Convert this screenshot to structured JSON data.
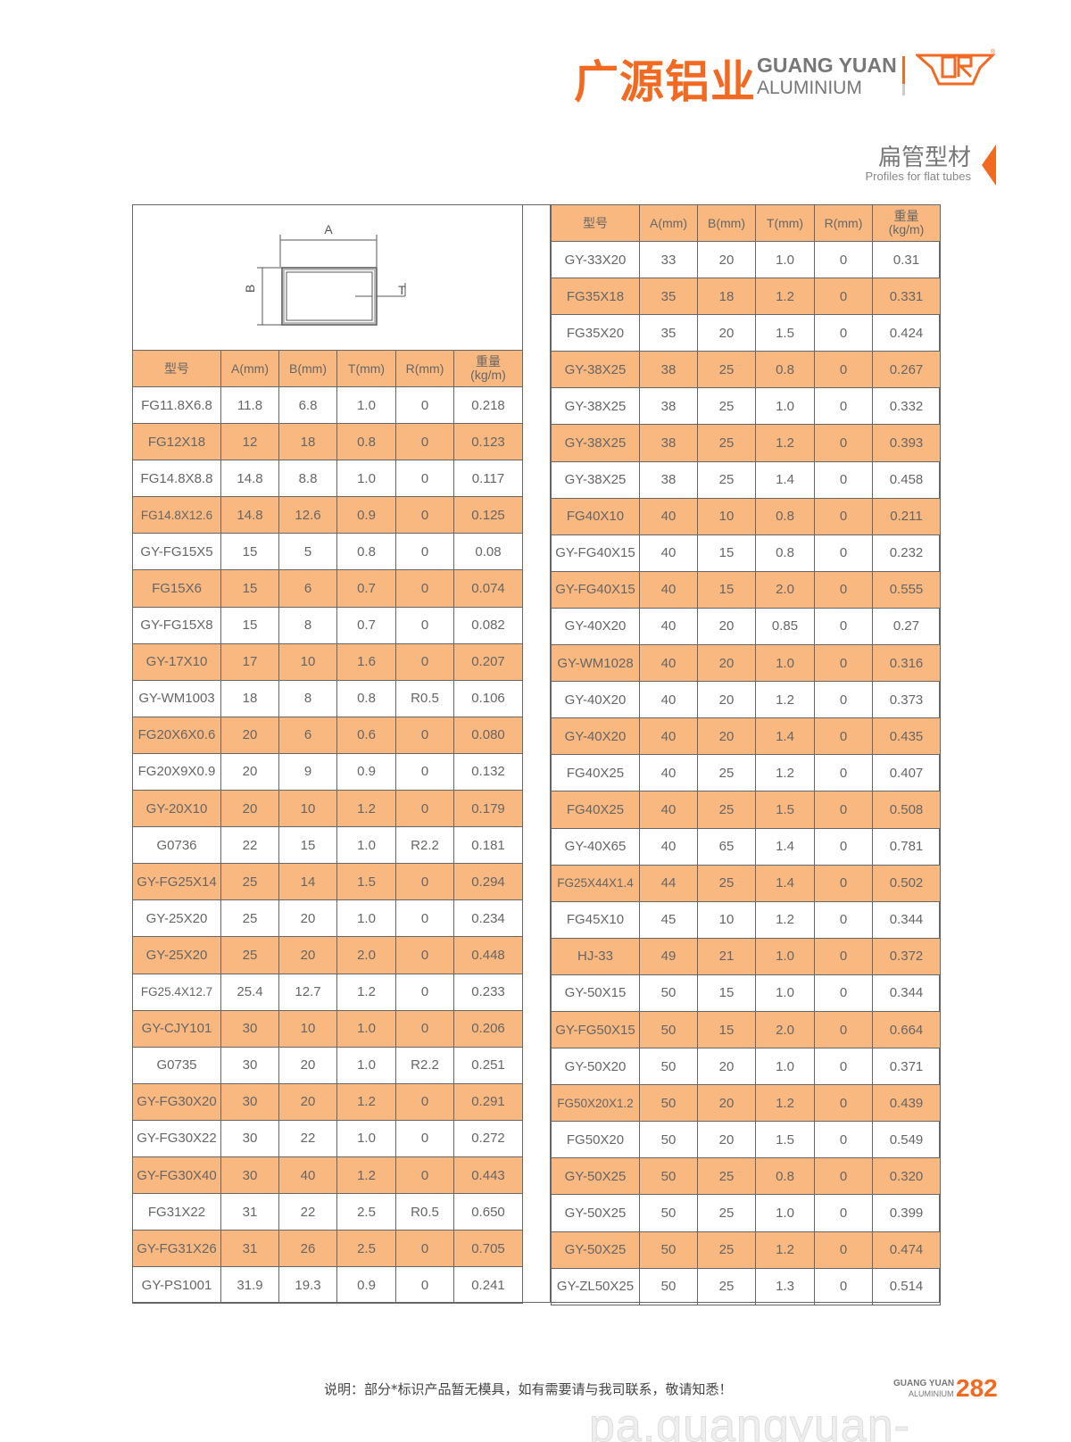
{
  "brand": {
    "name_cn": "广源铝业",
    "name_en_1": "GUANG YUAN",
    "name_en_2": "ALUMINIUM",
    "logo_text": "GYR",
    "accent": "#F26A21",
    "row_highlight": "#F9B880"
  },
  "section": {
    "title_cn": "扁管型材",
    "title_en": "Profiles for flat tubes"
  },
  "diagram": {
    "label_a": "A",
    "label_b": "B",
    "label_t": "T"
  },
  "columns": [
    "型号",
    "A(mm)",
    "B(mm)",
    "T(mm)",
    "R(mm)",
    "重量\n(kg/m)"
  ],
  "left_table": [
    [
      "FG11.8X6.8",
      "11.8",
      "6.8",
      "1.0",
      "0",
      "0.218"
    ],
    [
      "FG12X18",
      "12",
      "18",
      "0.8",
      "0",
      "0.123"
    ],
    [
      "FG14.8X8.8",
      "14.8",
      "8.8",
      "1.0",
      "0",
      "0.117"
    ],
    [
      "FG14.8X12.6",
      "14.8",
      "12.6",
      "0.9",
      "0",
      "0.125"
    ],
    [
      "GY-FG15X5",
      "15",
      "5",
      "0.8",
      "0",
      "0.08"
    ],
    [
      "FG15X6",
      "15",
      "6",
      "0.7",
      "0",
      "0.074"
    ],
    [
      "GY-FG15X8",
      "15",
      "8",
      "0.7",
      "0",
      "0.082"
    ],
    [
      "GY-17X10",
      "17",
      "10",
      "1.6",
      "0",
      "0.207"
    ],
    [
      "GY-WM1003",
      "18",
      "8",
      "0.8",
      "R0.5",
      "0.106"
    ],
    [
      "FG20X6X0.6",
      "20",
      "6",
      "0.6",
      "0",
      "0.080"
    ],
    [
      "FG20X9X0.9",
      "20",
      "9",
      "0.9",
      "0",
      "0.132"
    ],
    [
      "GY-20X10",
      "20",
      "10",
      "1.2",
      "0",
      "0.179"
    ],
    [
      "G0736",
      "22",
      "15",
      "1.0",
      "R2.2",
      "0.181"
    ],
    [
      "GY-FG25X14",
      "25",
      "14",
      "1.5",
      "0",
      "0.294"
    ],
    [
      "GY-25X20",
      "25",
      "20",
      "1.0",
      "0",
      "0.234"
    ],
    [
      "GY-25X20",
      "25",
      "20",
      "2.0",
      "0",
      "0.448"
    ],
    [
      "FG25.4X12.7",
      "25.4",
      "12.7",
      "1.2",
      "0",
      "0.233"
    ],
    [
      "GY-CJY101",
      "30",
      "10",
      "1.0",
      "0",
      "0.206"
    ],
    [
      "G0735",
      "30",
      "20",
      "1.0",
      "R2.2",
      "0.251"
    ],
    [
      "GY-FG30X20",
      "30",
      "20",
      "1.2",
      "0",
      "0.291"
    ],
    [
      "GY-FG30X22",
      "30",
      "22",
      "1.0",
      "0",
      "0.272"
    ],
    [
      "GY-FG30X40",
      "30",
      "40",
      "1.2",
      "0",
      "0.443"
    ],
    [
      "FG31X22",
      "31",
      "22",
      "2.5",
      "R0.5",
      "0.650"
    ],
    [
      "GY-FG31X26",
      "31",
      "26",
      "2.5",
      "0",
      "0.705"
    ],
    [
      "GY-PS1001",
      "31.9",
      "19.3",
      "0.9",
      "0",
      "0.241"
    ]
  ],
  "right_table": [
    [
      "GY-33X20",
      "33",
      "20",
      "1.0",
      "0",
      "0.31"
    ],
    [
      "FG35X18",
      "35",
      "18",
      "1.2",
      "0",
      "0.331"
    ],
    [
      "FG35X20",
      "35",
      "20",
      "1.5",
      "0",
      "0.424"
    ],
    [
      "GY-38X25",
      "38",
      "25",
      "0.8",
      "0",
      "0.267"
    ],
    [
      "GY-38X25",
      "38",
      "25",
      "1.0",
      "0",
      "0.332"
    ],
    [
      "GY-38X25",
      "38",
      "25",
      "1.2",
      "0",
      "0.393"
    ],
    [
      "GY-38X25",
      "38",
      "25",
      "1.4",
      "0",
      "0.458"
    ],
    [
      "FG40X10",
      "40",
      "10",
      "0.8",
      "0",
      "0.211"
    ],
    [
      "GY-FG40X15",
      "40",
      "15",
      "0.8",
      "0",
      "0.232"
    ],
    [
      "GY-FG40X15",
      "40",
      "15",
      "2.0",
      "0",
      "0.555"
    ],
    [
      "GY-40X20",
      "40",
      "20",
      "0.85",
      "0",
      "0.27"
    ],
    [
      "GY-WM1028",
      "40",
      "20",
      "1.0",
      "0",
      "0.316"
    ],
    [
      "GY-40X20",
      "40",
      "20",
      "1.2",
      "0",
      "0.373"
    ],
    [
      "GY-40X20",
      "40",
      "20",
      "1.4",
      "0",
      "0.435"
    ],
    [
      "FG40X25",
      "40",
      "25",
      "1.2",
      "0",
      "0.407"
    ],
    [
      "FG40X25",
      "40",
      "25",
      "1.5",
      "0",
      "0.508"
    ],
    [
      "GY-40X65",
      "40",
      "65",
      "1.4",
      "0",
      "0.781"
    ],
    [
      "FG25X44X1.4",
      "44",
      "25",
      "1.4",
      "0",
      "0.502"
    ],
    [
      "FG45X10",
      "45",
      "10",
      "1.2",
      "0",
      "0.344"
    ],
    [
      "HJ-33",
      "49",
      "21",
      "1.0",
      "0",
      "0.372"
    ],
    [
      "GY-50X15",
      "50",
      "15",
      "1.0",
      "0",
      "0.344"
    ],
    [
      "GY-FG50X15",
      "50",
      "15",
      "2.0",
      "0",
      "0.664"
    ],
    [
      "GY-50X20",
      "50",
      "20",
      "1.0",
      "0",
      "0.371"
    ],
    [
      "FG50X20X1.2",
      "50",
      "20",
      "1.2",
      "0",
      "0.439"
    ],
    [
      "FG50X20",
      "50",
      "20",
      "1.5",
      "0",
      "0.549"
    ],
    [
      "GY-50X25",
      "50",
      "25",
      "0.8",
      "0",
      "0.320"
    ],
    [
      "GY-50X25",
      "50",
      "25",
      "1.0",
      "0",
      "0.399"
    ],
    [
      "GY-50X25",
      "50",
      "25",
      "1.2",
      "0",
      "0.474"
    ],
    [
      "GY-ZL50X25",
      "50",
      "25",
      "1.3",
      "0",
      "0.514"
    ]
  ],
  "footer": {
    "note": "说明：部分*标识产品暂无模具，如有需要请与我司联系，敬请知悉！",
    "brand_1": "GUANG YUAN",
    "brand_2": "ALUMINIUM",
    "page_number": "282",
    "watermark": "pa.guangyuan-alum.com"
  }
}
